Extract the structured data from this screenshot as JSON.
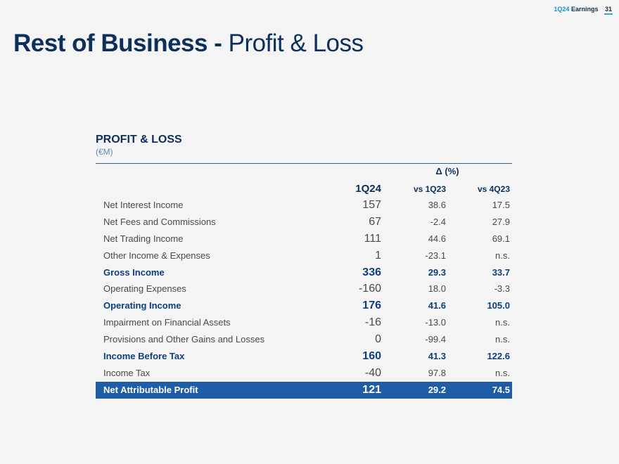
{
  "header": {
    "quarter": "1Q24",
    "word": "Earnings",
    "page_number": "31"
  },
  "title": {
    "bold": "Rest of Business -",
    "light": "Profit & Loss"
  },
  "section": {
    "title": "PROFIT & LOSS",
    "unit": "(€M)"
  },
  "table": {
    "delta_header": "Δ (%)",
    "columns": {
      "value": "1Q24",
      "vs_a": "vs 1Q23",
      "vs_b": "vs 4Q23"
    },
    "rows": [
      {
        "label": "Net Interest Income",
        "value": "157",
        "vs_a": "38.6",
        "vs_b": "17.5",
        "style": "normal"
      },
      {
        "label": "Net Fees and Commissions",
        "value": "67",
        "vs_a": "-2.4",
        "vs_b": "27.9",
        "style": "normal"
      },
      {
        "label": "Net Trading Income",
        "value": "111",
        "vs_a": "44.6",
        "vs_b": "69.1",
        "style": "normal"
      },
      {
        "label": "Other Income & Expenses",
        "value": "1",
        "vs_a": "-23.1",
        "vs_b": "n.s.",
        "style": "normal"
      },
      {
        "label": "Gross Income",
        "value": "336",
        "vs_a": "29.3",
        "vs_b": "33.7",
        "style": "bold"
      },
      {
        "label": "Operating Expenses",
        "value": "-160",
        "vs_a": "18.0",
        "vs_b": "-3.3",
        "style": "normal"
      },
      {
        "label": "Operating Income",
        "value": "176",
        "vs_a": "41.6",
        "vs_b": "105.0",
        "style": "bold"
      },
      {
        "label": "Impairment on Financial Assets",
        "value": "-16",
        "vs_a": "-13.0",
        "vs_b": "n.s.",
        "style": "normal"
      },
      {
        "label": "Provisions and Other Gains and Losses",
        "value": "0",
        "vs_a": "-99.4",
        "vs_b": "n.s.",
        "style": "normal"
      },
      {
        "label": "Income Before Tax",
        "value": "160",
        "vs_a": "41.3",
        "vs_b": "122.6",
        "style": "bold"
      },
      {
        "label": "Income Tax",
        "value": "-40",
        "vs_a": "97.8",
        "vs_b": "n.s.",
        "style": "normal"
      },
      {
        "label": "Net Attributable Profit",
        "value": "121",
        "vs_a": "29.2",
        "vs_b": "74.5",
        "style": "highlight"
      }
    ]
  }
}
